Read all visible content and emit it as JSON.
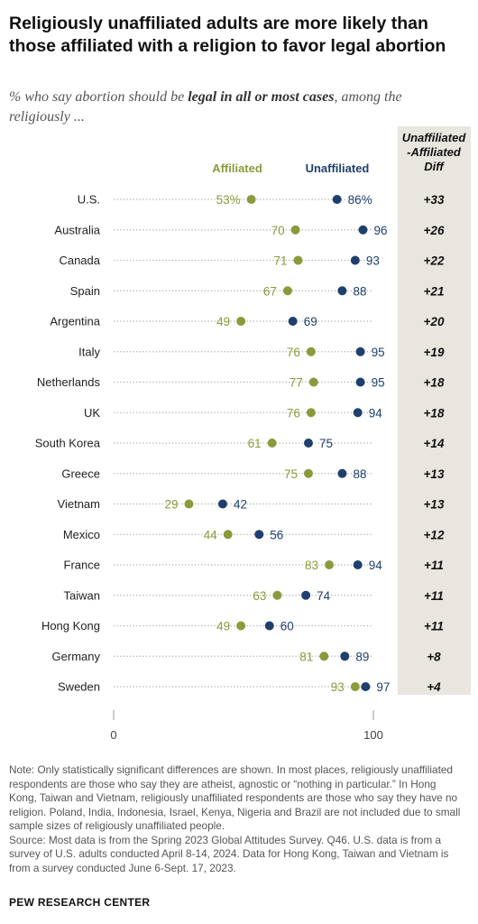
{
  "title": "Religiously unaffiliated adults are more likely than those affiliated with a religion to favor legal abortion",
  "subtitle": {
    "pre": "% who say abortion should be ",
    "emph": "legal in all or most cases",
    "post": ", among the religiously ..."
  },
  "diff_header": [
    "Unaffiliated",
    "-Affiliated",
    "Diff"
  ],
  "colors": {
    "affiliated": "#8c9a3b",
    "unaffiliated": "#1f3f6e",
    "diff_bg": "#e8e6df",
    "dots": "#aaaaaa"
  },
  "chart_data": {
    "type": "dot plot",
    "series": [
      {
        "name": "Affiliated",
        "values": [
          53,
          70,
          71,
          67,
          49,
          76,
          77,
          76,
          61,
          75,
          29,
          44,
          83,
          63,
          49,
          81,
          93
        ]
      },
      {
        "name": "Unaffiliated",
        "values": [
          86,
          96,
          93,
          88,
          69,
          95,
          95,
          94,
          75,
          88,
          42,
          56,
          94,
          74,
          60,
          89,
          97
        ]
      }
    ],
    "categories": [
      "U.S.",
      "Australia",
      "Canada",
      "Spain",
      "Argentina",
      "Italy",
      "Netherlands",
      "UK",
      "South Korea",
      "Greece",
      "Vietnam",
      "Mexico",
      "France",
      "Taiwan",
      "Hong Kong",
      "Germany",
      "Sweden"
    ],
    "affiliated_labels": [
      "53%",
      "70",
      "71",
      "67",
      "49",
      "76",
      "77",
      "76",
      "61",
      "75",
      "29",
      "44",
      "83",
      "63",
      "49",
      "81",
      "93"
    ],
    "unaffiliated_labels": [
      "86%",
      "96",
      "93",
      "88",
      "69",
      "95",
      "95",
      "94",
      "75",
      "88",
      "42",
      "56",
      "94",
      "74",
      "60",
      "89",
      "97"
    ],
    "diff": [
      "+33",
      "+26",
      "+22",
      "+21",
      "+20",
      "+19",
      "+18",
      "+18",
      "+14",
      "+13",
      "+13",
      "+12",
      "+11",
      "+11",
      "+11",
      "+8",
      "+4"
    ],
    "xlim": [
      0,
      100
    ],
    "xticks": [
      "0",
      "100"
    ]
  },
  "note": "Note: Only statistically significant differences are shown. In most places, religiously unaffiliated respondents are those who say they are atheist, agnostic or “nothing in particular.” In Hong Kong, Taiwan and Vietnam, religiously unaffiliated respondents are those who say they have no religion. Poland, India, Indonesia, Israel, Kenya, Nigeria and Brazil are not included due to small sample sizes of religiously unaffiliated people.",
  "source": "Source: Most data is from the Spring 2023 Global Attitudes Survey. Q46. U.S. data is from a survey of U.S. adults conducted April 8-14, 2024. Data for Hong Kong, Taiwan and Vietnam is from a survey conducted June 6-Sept. 17, 2023.",
  "org": "PEW RESEARCH CENTER"
}
